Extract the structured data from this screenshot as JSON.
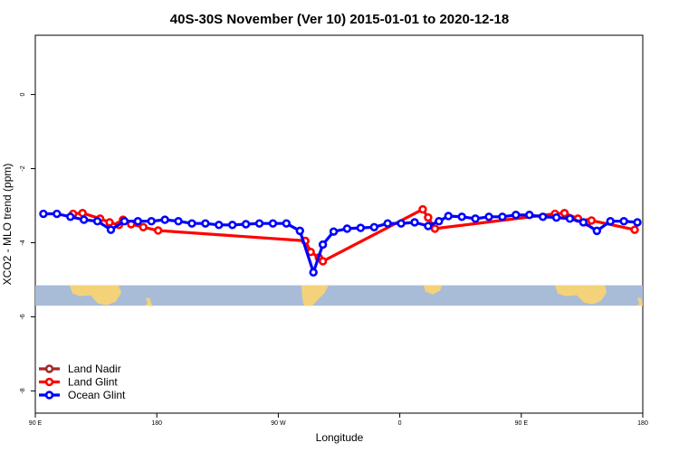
{
  "chart_data": {
    "type": "line",
    "title": "40S-30S November (Ver 10)   2015-01-01 to 2020-12-18",
    "xlabel": "Longitude",
    "ylabel": "XCO2 - MLO trend (ppm)",
    "x_ticks": [
      {
        "value": 90,
        "label": "90 E"
      },
      {
        "value": 180,
        "label": "180"
      },
      {
        "value": 270,
        "label": "90 W"
      },
      {
        "value": 360,
        "label": "0"
      },
      {
        "value": 450,
        "label": "90 E"
      },
      {
        "value": 540,
        "label": "180"
      }
    ],
    "y_ticks": [
      {
        "value": 0,
        "label": "0"
      },
      {
        "value": -2,
        "label": "-2"
      },
      {
        "value": -4,
        "label": "-4"
      },
      {
        "value": -6,
        "label": "-6"
      },
      {
        "value": -8,
        "label": "-8"
      }
    ],
    "xlim": [
      90,
      540
    ],
    "ylim": [
      -8.6,
      1.6
    ],
    "map_band": {
      "ocean_color": "#a8bcd8",
      "land_color": "#f4d27a",
      "y_top": -5.15,
      "y_bottom": -5.7
    },
    "series": [
      {
        "name": "Land Nadir",
        "color": "#a52a2a",
        "x": [],
        "y": []
      },
      {
        "name": "Land Glint",
        "color": "#ff0000",
        "x": [
          118,
          125,
          138,
          145,
          152,
          155,
          161,
          170,
          181,
          290,
          294,
          300,
          303,
          377,
          381,
          386,
          475,
          482,
          492,
          499,
          502,
          534
        ],
        "y": [
          -3.22,
          -3.2,
          -3.35,
          -3.45,
          -3.52,
          -3.38,
          -3.5,
          -3.58,
          -3.67,
          -3.95,
          -4.25,
          -4.4,
          -4.5,
          -3.1,
          -3.32,
          -3.62,
          -3.22,
          -3.2,
          -3.35,
          -3.45,
          -3.4,
          -3.65
        ]
      },
      {
        "name": "Ocean Glint",
        "color": "#0000ff",
        "x": [
          96,
          106,
          116,
          126,
          136,
          146,
          156,
          166,
          176,
          186,
          196,
          206,
          216,
          226,
          236,
          246,
          256,
          266,
          276,
          286,
          296,
          303,
          311,
          321,
          331,
          341,
          351,
          361,
          371,
          381,
          389,
          396,
          406,
          416,
          426,
          436,
          446,
          456,
          466,
          476,
          486,
          496,
          506,
          516,
          526,
          536
        ],
        "y": [
          -3.22,
          -3.22,
          -3.3,
          -3.38,
          -3.42,
          -3.65,
          -3.42,
          -3.42,
          -3.42,
          -3.38,
          -3.42,
          -3.48,
          -3.48,
          -3.52,
          -3.52,
          -3.5,
          -3.48,
          -3.48,
          -3.48,
          -3.68,
          -4.8,
          -4.05,
          -3.7,
          -3.62,
          -3.6,
          -3.58,
          -3.48,
          -3.48,
          -3.45,
          -3.55,
          -3.42,
          -3.28,
          -3.3,
          -3.35,
          -3.3,
          -3.3,
          -3.25,
          -3.25,
          -3.3,
          -3.32,
          -3.35,
          -3.45,
          -3.68,
          -3.42,
          -3.42,
          -3.45
        ]
      }
    ],
    "legend_position": "bottom-left"
  }
}
